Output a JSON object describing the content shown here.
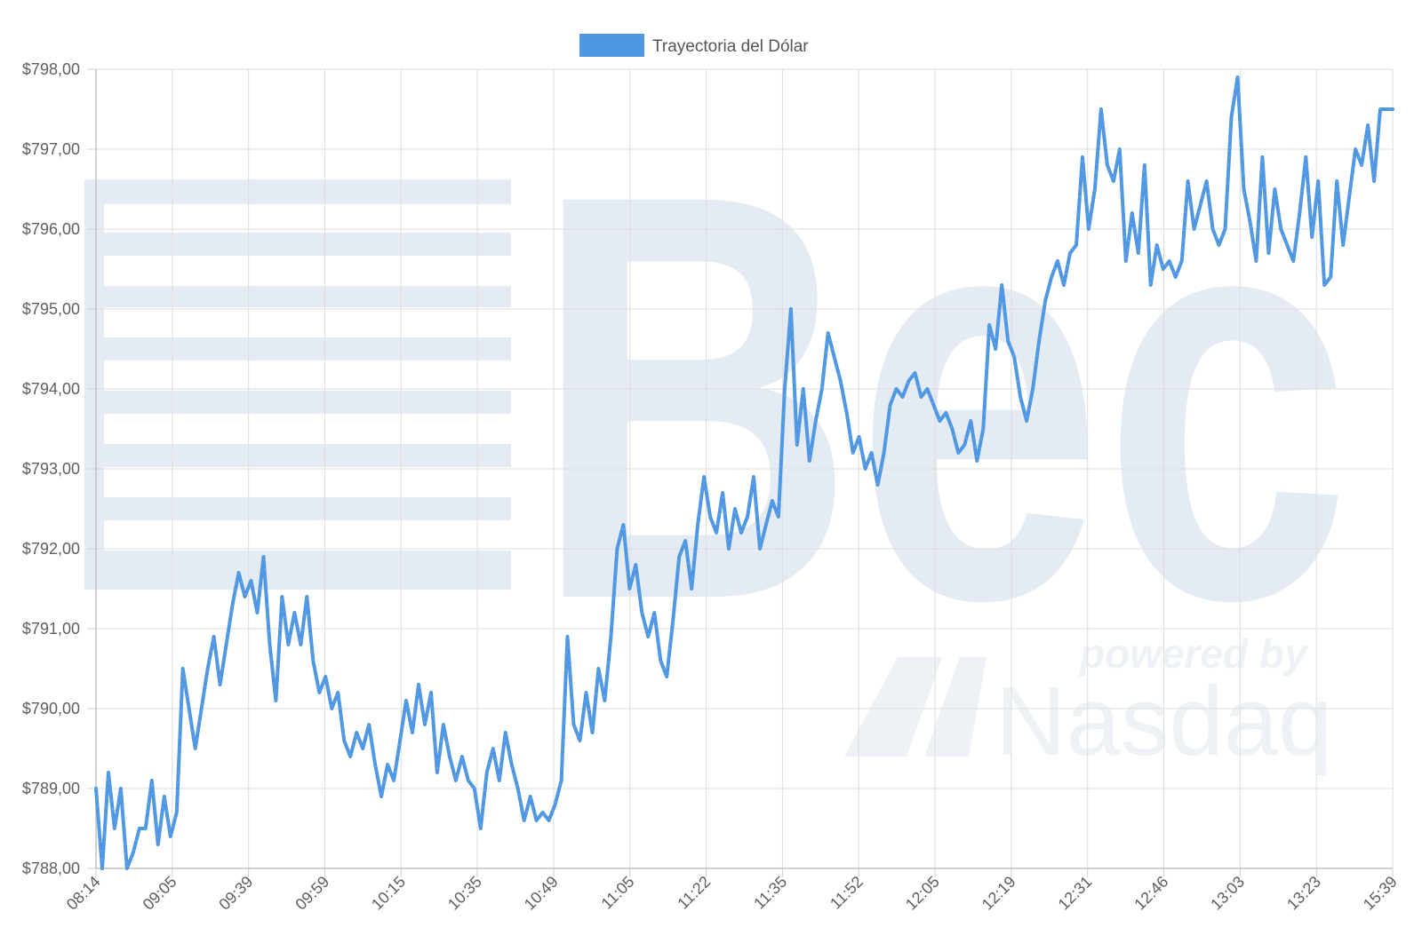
{
  "chart_data": {
    "type": "line",
    "title": "",
    "xlabel": "",
    "ylabel": "",
    "legend": {
      "position": "top",
      "entries": [
        "Trayectoria del Dólar"
      ]
    },
    "grid": true,
    "ylim": [
      788,
      798
    ],
    "y_ticks": [
      "$788,00",
      "$789,00",
      "$790,00",
      "$791,00",
      "$792,00",
      "$793,00",
      "$794,00",
      "$795,00",
      "$796,00",
      "$797,00",
      "$798,00"
    ],
    "x_ticks": [
      "08:14",
      "09:05",
      "09:39",
      "09:59",
      "10:15",
      "10:35",
      "10:49",
      "11:05",
      "11:22",
      "11:35",
      "11:52",
      "12:05",
      "12:19",
      "12:31",
      "12:46",
      "13:03",
      "13:23",
      "15:39"
    ],
    "series": [
      {
        "name": "Trayectoria del Dólar",
        "color": "#4f97e3",
        "values": [
          789.0,
          788.0,
          789.2,
          788.5,
          789.0,
          788.0,
          788.2,
          788.5,
          788.5,
          789.1,
          788.3,
          788.9,
          788.4,
          788.7,
          790.5,
          790.0,
          789.5,
          790.0,
          790.5,
          790.9,
          790.3,
          790.8,
          791.3,
          791.7,
          791.4,
          791.6,
          791.2,
          791.9,
          790.8,
          790.1,
          791.4,
          790.8,
          791.2,
          790.8,
          791.4,
          790.6,
          790.2,
          790.4,
          790.0,
          790.2,
          789.6,
          789.4,
          789.7,
          789.5,
          789.8,
          789.3,
          788.9,
          789.3,
          789.1,
          789.6,
          790.1,
          789.7,
          790.3,
          789.8,
          790.2,
          789.2,
          789.8,
          789.4,
          789.1,
          789.4,
          789.1,
          789.0,
          788.5,
          789.2,
          789.5,
          789.1,
          789.7,
          789.3,
          789.0,
          788.6,
          788.9,
          788.6,
          788.7,
          788.6,
          788.8,
          789.1,
          790.9,
          789.8,
          789.6,
          790.2,
          789.7,
          790.5,
          790.1,
          790.9,
          792.0,
          792.3,
          791.5,
          791.8,
          791.2,
          790.9,
          791.2,
          790.6,
          790.4,
          791.1,
          791.9,
          792.1,
          791.5,
          792.3,
          792.9,
          792.4,
          792.2,
          792.7,
          792.0,
          792.5,
          792.2,
          792.4,
          792.9,
          792.0,
          792.3,
          792.6,
          792.4,
          794.0,
          795.0,
          793.3,
          794.0,
          793.1,
          793.6,
          794.0,
          794.7,
          794.4,
          794.1,
          793.7,
          793.2,
          793.4,
          793.0,
          793.2,
          792.8,
          793.2,
          793.8,
          794.0,
          793.9,
          794.1,
          794.2,
          793.9,
          794.0,
          793.8,
          793.6,
          793.7,
          793.5,
          793.2,
          793.3,
          793.6,
          793.1,
          793.5,
          794.8,
          794.5,
          795.3,
          794.6,
          794.4,
          793.9,
          793.6,
          794.0,
          794.6,
          795.1,
          795.4,
          795.6,
          795.3,
          795.7,
          795.8,
          796.9,
          796.0,
          796.5,
          797.5,
          796.8,
          796.6,
          797.0,
          795.6,
          796.2,
          795.7,
          796.8,
          795.3,
          795.8,
          795.5,
          795.6,
          795.4,
          795.6,
          796.6,
          796.0,
          796.3,
          796.6,
          796.0,
          795.8,
          796.0,
          797.4,
          797.9,
          796.5,
          796.1,
          795.6,
          796.9,
          795.7,
          796.5,
          796.0,
          795.8,
          795.6,
          796.2,
          796.9,
          795.9,
          796.6,
          795.3,
          795.4,
          796.6,
          795.8,
          796.4,
          797.0,
          796.8,
          797.3,
          796.6,
          797.5,
          797.5,
          797.5
        ]
      }
    ]
  },
  "watermark": {
    "brand": "Bec",
    "tagline": "powered by",
    "partner": "Nasdaq"
  }
}
